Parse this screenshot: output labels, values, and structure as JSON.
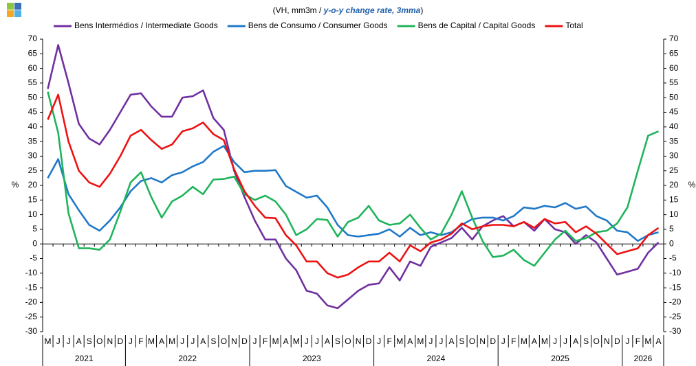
{
  "chart_data": {
    "type": "line",
    "subtitle": [
      "(VH, mm3m  / ",
      "y-o-y change rate, 3mma",
      ")"
    ],
    "ylabel": "%",
    "y2label": "%",
    "category_groups": [
      {
        "label": "2021",
        "categories": [
          "M",
          "J",
          "J",
          "A",
          "S",
          "O",
          "N",
          "D"
        ]
      },
      {
        "label": "2022",
        "categories": [
          "J",
          "F",
          "M",
          "A",
          "M",
          "J",
          "J",
          "A",
          "S",
          "O",
          "N",
          "D"
        ]
      },
      {
        "label": "2023",
        "categories": [
          "J",
          "F",
          "M",
          "A",
          "M",
          "J",
          "J",
          "A",
          "S",
          "O",
          "N",
          "D"
        ]
      },
      {
        "label": "2024",
        "categories": [
          "J",
          "F",
          "M",
          "A",
          "M",
          "J",
          "J",
          "A",
          "S",
          "O",
          "N",
          "D"
        ]
      },
      {
        "label": "2025",
        "categories": [
          "J",
          "F",
          "M",
          "A",
          "M",
          "J",
          "J",
          "A",
          "S",
          "O",
          "N",
          "D"
        ]
      },
      {
        "label": "2026",
        "categories": [
          "J",
          "F",
          "M",
          "A"
        ]
      }
    ],
    "ylim": [
      -30,
      70
    ],
    "yticks": [
      -30,
      -25,
      -20,
      -15,
      -10,
      -5,
      0,
      5,
      10,
      15,
      20,
      25,
      30,
      35,
      40,
      45,
      50,
      55,
      60,
      65,
      70
    ],
    "y2lim": [
      -30,
      70
    ],
    "y2ticks": [
      -30,
      -25,
      -20,
      -15,
      -10,
      -5,
      0,
      5,
      10,
      15,
      20,
      25,
      30,
      35,
      40,
      45,
      50,
      55,
      60,
      65,
      70
    ],
    "series": [
      {
        "name": "Bens Intermédios / Intermediate Goods",
        "color": "#7030a0",
        "values": [
          53,
          68,
          55,
          41,
          36,
          34,
          39,
          45,
          51,
          51.5,
          47,
          43.5,
          43.5,
          50,
          50.5,
          52.5,
          43,
          39,
          25,
          16,
          8,
          1.5,
          1.5,
          -5,
          -9,
          -16,
          -17,
          -21,
          -22,
          -19,
          -16,
          -14,
          -13.5,
          -8,
          -12.5,
          -6,
          -7.5,
          -1,
          0.5,
          2,
          5.5,
          1.5,
          6,
          8,
          9.5,
          6,
          7.5,
          4.5,
          8.5,
          5,
          4,
          0,
          3,
          0.5,
          -5,
          -10.5,
          -9.5,
          -8.5,
          -3,
          0.5
        ]
      },
      {
        "name": "Bens de Consumo / Consumer Goods",
        "color": "#1f78c8",
        "values": [
          22.5,
          29,
          17,
          11.5,
          6.5,
          4.5,
          8,
          12.5,
          18,
          21.5,
          22.5,
          21,
          23.5,
          24.5,
          26.5,
          28,
          31.5,
          33.5,
          28,
          24.5,
          25,
          25,
          25.2,
          19.8,
          17.8,
          15.8,
          16.5,
          12.5,
          6.5,
          3,
          2.5,
          3,
          3.5,
          5,
          2.5,
          5.5,
          3,
          4,
          3,
          4,
          6.5,
          8.5,
          9,
          9,
          8,
          9.5,
          12.5,
          12,
          13,
          12.5,
          14,
          12,
          12.8,
          9.5,
          8,
          4.5,
          4,
          1,
          3,
          4
        ]
      },
      {
        "name": "Bens de Capital / Capital Goods",
        "color": "#1fb45a",
        "values": [
          52,
          38,
          10.5,
          -1.5,
          -1.5,
          -2,
          1.5,
          11,
          21,
          24.5,
          16,
          9,
          14.5,
          16.5,
          19.5,
          17,
          22,
          22.2,
          23,
          17,
          15,
          16.5,
          14.5,
          10,
          3,
          5,
          8.5,
          8.2,
          2.5,
          7.5,
          9,
          13,
          8,
          6.5,
          7,
          10,
          5.5,
          1.5,
          3.5,
          10,
          18,
          9,
          1,
          -4.5,
          -4,
          -2,
          -5.5,
          -7.5,
          -3,
          1.5,
          4.5,
          1,
          2,
          4,
          4.5,
          7,
          12.5,
          25,
          37,
          38.5
        ]
      },
      {
        "name": "Total",
        "color": "#ee1111",
        "values": [
          42.5,
          51,
          35,
          25,
          21,
          19.5,
          24,
          30,
          37,
          39,
          35.5,
          32.5,
          34,
          38.5,
          39.5,
          41.5,
          37.5,
          35.5,
          25.5,
          18,
          13,
          9,
          8.8,
          3,
          -0.5,
          -6,
          -6,
          -10,
          -11.5,
          -10.5,
          -8,
          -6,
          -6,
          -3,
          -6,
          -0.5,
          -2.5,
          0.5,
          1.5,
          3.5,
          7,
          5,
          6,
          6.5,
          6.5,
          6,
          7.5,
          5.5,
          8.5,
          7,
          7.5,
          4,
          6,
          3.5,
          0,
          -3.5,
          -2.5,
          -1.5,
          3,
          5.5
        ]
      }
    ]
  }
}
